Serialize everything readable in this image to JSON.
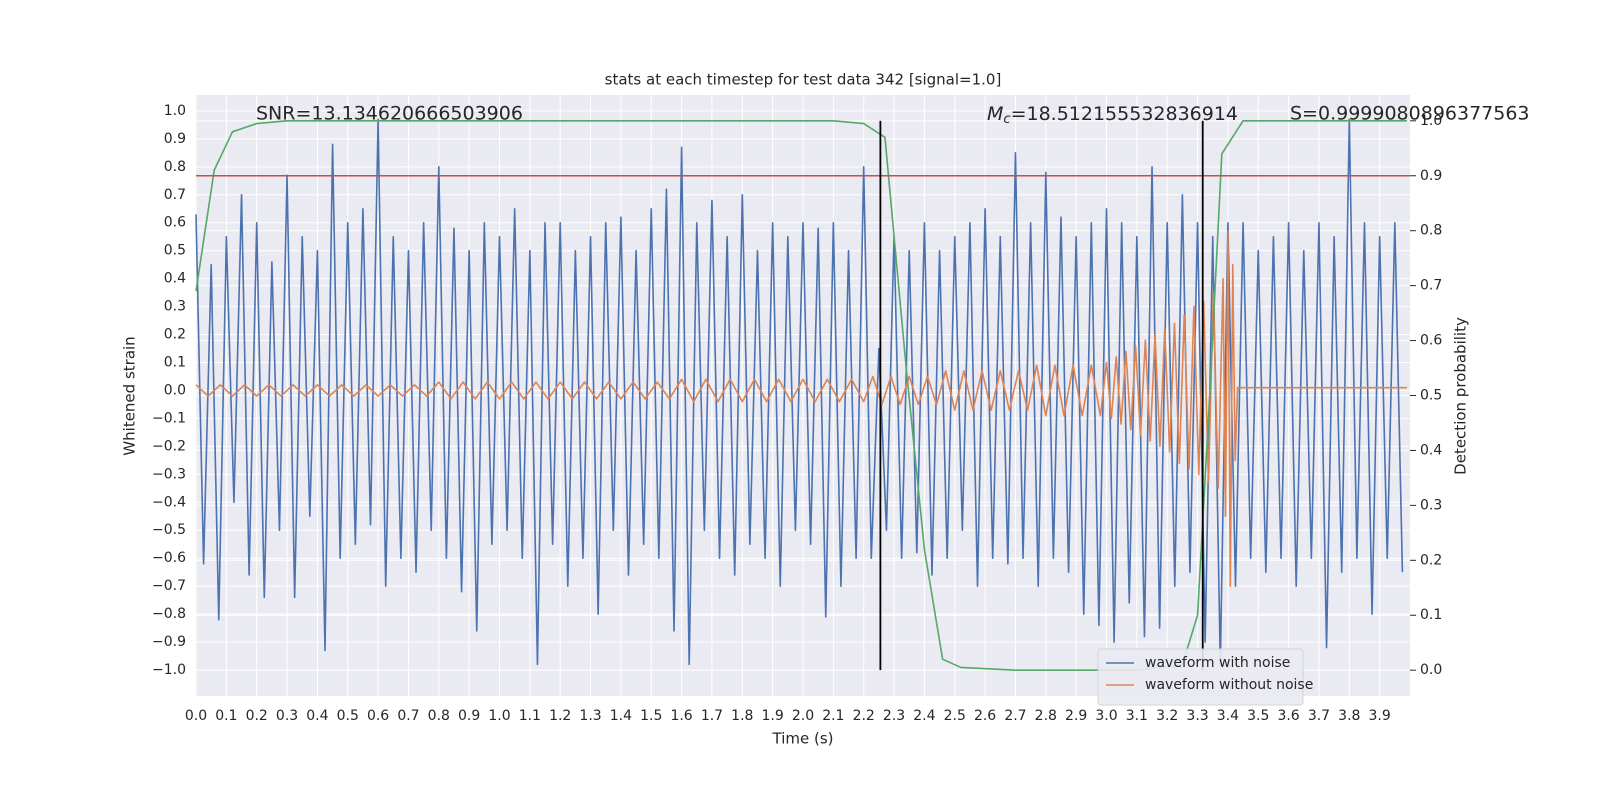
{
  "chart_data": {
    "type": "line",
    "title": "stats at each timestep for test data 342 [signal=1.0]",
    "xlabel": "Time (s)",
    "ylabel": "Whitened strain",
    "y2label": "Detection probability",
    "annotations": {
      "snr": "SNR=13.134620666503906",
      "mc_symbol": "M",
      "mc_subscript": "c",
      "mc_value": "=18.512155532836914",
      "s": "S=0.9999080896377563"
    },
    "xlim": [
      0,
      4.0
    ],
    "ylim": [
      -1.093,
      1.057
    ],
    "y2lim": [
      -0.047,
      1.047
    ],
    "grid": true,
    "legend": "lower right",
    "xticks": [
      {
        "value": 0,
        "label": "0.0"
      },
      {
        "value": 0.1,
        "label": "0.1"
      },
      {
        "value": 0.2,
        "label": "0.2"
      },
      {
        "value": 0.3,
        "label": "0.3"
      },
      {
        "value": 0.4,
        "label": "0.4"
      },
      {
        "value": 0.5,
        "label": "0.5"
      },
      {
        "value": 0.6,
        "label": "0.6"
      },
      {
        "value": 0.7,
        "label": "0.7"
      },
      {
        "value": 0.8,
        "label": "0.8"
      },
      {
        "value": 0.9,
        "label": "0.9"
      },
      {
        "value": 1,
        "label": "1.0"
      },
      {
        "value": 1.1,
        "label": "1.1"
      },
      {
        "value": 1.2,
        "label": "1.2"
      },
      {
        "value": 1.3,
        "label": "1.3"
      },
      {
        "value": 1.4,
        "label": "1.4"
      },
      {
        "value": 1.5,
        "label": "1.5"
      },
      {
        "value": 1.6,
        "label": "1.6"
      },
      {
        "value": 1.7,
        "label": "1.7"
      },
      {
        "value": 1.8,
        "label": "1.8"
      },
      {
        "value": 1.9,
        "label": "1.9"
      },
      {
        "value": 2,
        "label": "2.0"
      },
      {
        "value": 2.1,
        "label": "2.1"
      },
      {
        "value": 2.2,
        "label": "2.2"
      },
      {
        "value": 2.3,
        "label": "2.3"
      },
      {
        "value": 2.4,
        "label": "2.4"
      },
      {
        "value": 2.5,
        "label": "2.5"
      },
      {
        "value": 2.6,
        "label": "2.6"
      },
      {
        "value": 2.7,
        "label": "2.7"
      },
      {
        "value": 2.8,
        "label": "2.8"
      },
      {
        "value": 2.9,
        "label": "2.9"
      },
      {
        "value": 3,
        "label": "3.0"
      },
      {
        "value": 3.1,
        "label": "3.1"
      },
      {
        "value": 3.2,
        "label": "3.2"
      },
      {
        "value": 3.3,
        "label": "3.3"
      },
      {
        "value": 3.4,
        "label": "3.4"
      },
      {
        "value": 3.5,
        "label": "3.5"
      },
      {
        "value": 3.6,
        "label": "3.6"
      },
      {
        "value": 3.7,
        "label": "3.7"
      },
      {
        "value": 3.8,
        "label": "3.8"
      },
      {
        "value": 3.9,
        "label": "3.9"
      }
    ],
    "yticks": [
      {
        "value": -1,
        "label": "−1.0"
      },
      {
        "value": -0.9,
        "label": "−0.9"
      },
      {
        "value": -0.8,
        "label": "−0.8"
      },
      {
        "value": -0.7,
        "label": "−0.7"
      },
      {
        "value": -0.6,
        "label": "−0.6"
      },
      {
        "value": -0.5,
        "label": "−0.5"
      },
      {
        "value": -0.4,
        "label": "−0.4"
      },
      {
        "value": -0.3,
        "label": "−0.3"
      },
      {
        "value": -0.2,
        "label": "−0.2"
      },
      {
        "value": -0.1,
        "label": "−0.1"
      },
      {
        "value": 0,
        "label": "0.0"
      },
      {
        "value": 0.1,
        "label": "0.1"
      },
      {
        "value": 0.2,
        "label": "0.2"
      },
      {
        "value": 0.3,
        "label": "0.3"
      },
      {
        "value": 0.4,
        "label": "0.4"
      },
      {
        "value": 0.5,
        "label": "0.5"
      },
      {
        "value": 0.6,
        "label": "0.6"
      },
      {
        "value": 0.7,
        "label": "0.7"
      },
      {
        "value": 0.8,
        "label": "0.8"
      },
      {
        "value": 0.9,
        "label": "0.9"
      },
      {
        "value": 1,
        "label": "1.0"
      }
    ],
    "y2ticks": [
      {
        "value": 0,
        "label": "0.0"
      },
      {
        "value": 0.1,
        "label": "0.1"
      },
      {
        "value": 0.2,
        "label": "0.2"
      },
      {
        "value": 0.3,
        "label": "0.3"
      },
      {
        "value": 0.4,
        "label": "0.4"
      },
      {
        "value": 0.5,
        "label": "0.5"
      },
      {
        "value": 0.6,
        "label": "0.6"
      },
      {
        "value": 0.7,
        "label": "0.7"
      },
      {
        "value": 0.8,
        "label": "0.8"
      },
      {
        "value": 0.9,
        "label": "0.9"
      },
      {
        "value": 1,
        "label": "1.0"
      }
    ],
    "series": [
      {
        "name": "waveform with noise",
        "color": "#4c72b0",
        "legend": true,
        "x": [
          0,
          0.025,
          0.05,
          0.075,
          0.1,
          0.125,
          0.15,
          0.175,
          0.2,
          0.225,
          0.25,
          0.275,
          0.3,
          0.325,
          0.35,
          0.375,
          0.4,
          0.425,
          0.45,
          0.475,
          0.5,
          0.525,
          0.55,
          0.575,
          0.6,
          0.625,
          0.65,
          0.675,
          0.7,
          0.725,
          0.75,
          0.775,
          0.8,
          0.825,
          0.85,
          0.875,
          0.9,
          0.925,
          0.95,
          0.975,
          1,
          1.025,
          1.05,
          1.075,
          1.1,
          1.125,
          1.15,
          1.175,
          1.2,
          1.225,
          1.25,
          1.275,
          1.3,
          1.325,
          1.35,
          1.375,
          1.4,
          1.425,
          1.45,
          1.475,
          1.5,
          1.525,
          1.55,
          1.575,
          1.6,
          1.625,
          1.65,
          1.675,
          1.7,
          1.725,
          1.75,
          1.775,
          1.8,
          1.825,
          1.85,
          1.875,
          1.9,
          1.925,
          1.95,
          1.975,
          2,
          2.025,
          2.05,
          2.075,
          2.1,
          2.125,
          2.15,
          2.175,
          2.2,
          2.225,
          2.25,
          2.275,
          2.3,
          2.325,
          2.35,
          2.375,
          2.4,
          2.425,
          2.45,
          2.475,
          2.5,
          2.525,
          2.55,
          2.575,
          2.6,
          2.625,
          2.65,
          2.675,
          2.7,
          2.725,
          2.75,
          2.775,
          2.8,
          2.825,
          2.85,
          2.875,
          2.9,
          2.925,
          2.95,
          2.975,
          3,
          3.025,
          3.05,
          3.075,
          3.1,
          3.125,
          3.15,
          3.175,
          3.2,
          3.225,
          3.25,
          3.275,
          3.3,
          3.325,
          3.35,
          3.375,
          3.4,
          3.425,
          3.45,
          3.475,
          3.5,
          3.525,
          3.55,
          3.575,
          3.6,
          3.625,
          3.65,
          3.675,
          3.7,
          3.725,
          3.75,
          3.775,
          3.8,
          3.825,
          3.85,
          3.875,
          3.9,
          3.925,
          3.95,
          3.975
        ],
        "values": [
          0.63,
          -0.62,
          0.45,
          -0.82,
          0.55,
          -0.4,
          0.7,
          -0.66,
          0.6,
          -0.74,
          0.46,
          -0.5,
          0.77,
          -0.74,
          0.55,
          -0.45,
          0.5,
          -0.93,
          0.88,
          -0.6,
          0.6,
          -0.55,
          0.65,
          -0.48,
          0.97,
          -0.7,
          0.55,
          -0.6,
          0.5,
          -0.65,
          0.6,
          -0.5,
          0.8,
          -0.6,
          0.58,
          -0.72,
          0.5,
          -0.86,
          0.6,
          -0.55,
          0.55,
          -0.5,
          0.65,
          -0.6,
          0.5,
          -0.98,
          0.6,
          -0.55,
          0.6,
          -0.7,
          0.5,
          -0.6,
          0.55,
          -0.8,
          0.6,
          -0.5,
          0.62,
          -0.66,
          0.5,
          -0.55,
          0.65,
          -0.6,
          0.72,
          -0.86,
          0.87,
          -0.98,
          0.6,
          -0.5,
          0.68,
          -0.6,
          0.55,
          -0.66,
          0.7,
          -0.55,
          0.5,
          -0.6,
          0.6,
          -0.7,
          0.55,
          -0.5,
          0.6,
          -0.55,
          0.58,
          -0.81,
          0.6,
          -0.7,
          0.5,
          -0.6,
          0.8,
          -0.6,
          0.15,
          -0.5,
          0.55,
          -0.6,
          0.5,
          -0.58,
          0.6,
          -0.66,
          0.5,
          -0.6,
          0.55,
          -0.5,
          0.6,
          -0.7,
          0.65,
          -0.6,
          0.55,
          -0.62,
          0.85,
          -0.6,
          0.6,
          -0.7,
          0.78,
          -0.6,
          0.62,
          -0.65,
          0.55,
          -0.8,
          0.6,
          -0.84,
          0.65,
          -0.9,
          0.6,
          -0.76,
          0.55,
          -0.88,
          0.8,
          -0.85,
          0.6,
          -0.7,
          0.7,
          -0.65,
          0.6,
          -0.9,
          0.55,
          -0.98,
          0.6,
          -0.7,
          0.6,
          -0.6,
          0.5,
          -0.65,
          0.55,
          -0.6,
          0.6,
          -0.7,
          0.5,
          -0.6,
          0.6,
          -0.92,
          0.55,
          -0.65,
          0.97,
          -0.6,
          0.6,
          -0.8,
          0.55,
          -0.6,
          0.6,
          -0.65
        ]
      },
      {
        "name": "waveform without noise",
        "color": "#dd8452",
        "legend": true,
        "x": [
          0,
          0.04,
          0.08,
          0.12,
          0.16,
          0.2,
          0.24,
          0.28,
          0.32,
          0.36,
          0.4,
          0.44,
          0.48,
          0.52,
          0.56,
          0.6,
          0.64,
          0.68,
          0.72,
          0.76,
          0.8,
          0.84,
          0.88,
          0.92,
          0.96,
          1,
          1.04,
          1.08,
          1.12,
          1.16,
          1.2,
          1.24,
          1.28,
          1.32,
          1.36,
          1.4,
          1.44,
          1.48,
          1.52,
          1.56,
          1.6,
          1.64,
          1.68,
          1.72,
          1.76,
          1.8,
          1.84,
          1.88,
          1.92,
          1.96,
          2,
          2.04,
          2.08,
          2.12,
          2.16,
          2.2,
          2.23,
          2.26,
          2.29,
          2.32,
          2.35,
          2.38,
          2.41,
          2.44,
          2.47,
          2.5,
          2.53,
          2.56,
          2.59,
          2.62,
          2.65,
          2.68,
          2.71,
          2.74,
          2.77,
          2.8,
          2.83,
          2.86,
          2.89,
          2.92,
          2.95,
          2.98,
          3,
          3.016,
          3.032,
          3.048,
          3.064,
          3.08,
          3.096,
          3.112,
          3.128,
          3.144,
          3.16,
          3.176,
          3.192,
          3.208,
          3.224,
          3.24,
          3.256,
          3.272,
          3.288,
          3.304,
          3.32,
          3.336,
          3.352,
          3.368,
          3.384,
          3.392,
          3.4,
          3.408,
          3.416,
          3.424,
          3.432,
          3.99
        ],
        "values": [
          0.02,
          -0.02,
          0.02,
          -0.02,
          0.02,
          -0.02,
          0.02,
          -0.02,
          0.02,
          -0.02,
          0.02,
          -0.02,
          0.02,
          -0.02,
          0.02,
          -0.02,
          0.02,
          -0.02,
          0.02,
          -0.02,
          0.03,
          -0.03,
          0.03,
          -0.03,
          0.03,
          -0.03,
          0.03,
          -0.03,
          0.03,
          -0.03,
          0.03,
          -0.03,
          0.03,
          -0.03,
          0.03,
          -0.03,
          0.03,
          -0.03,
          0.03,
          -0.03,
          0.04,
          -0.04,
          0.04,
          -0.04,
          0.04,
          -0.04,
          0.04,
          -0.04,
          0.04,
          -0.04,
          0.04,
          -0.04,
          0.04,
          -0.04,
          0.04,
          -0.04,
          0.05,
          -0.05,
          0.05,
          -0.05,
          0.05,
          -0.05,
          0.05,
          -0.05,
          0.07,
          -0.07,
          0.07,
          -0.07,
          0.07,
          -0.07,
          0.07,
          -0.07,
          0.07,
          -0.07,
          0.09,
          -0.09,
          0.09,
          -0.09,
          0.09,
          -0.09,
          0.09,
          -0.09,
          0.1,
          -0.1,
          0.12,
          -0.12,
          0.14,
          -0.14,
          0.16,
          -0.16,
          0.18,
          -0.18,
          0.2,
          -0.2,
          0.22,
          -0.22,
          0.24,
          -0.26,
          0.27,
          -0.28,
          0.3,
          -0.3,
          0.32,
          -0.33,
          0.35,
          -0.35,
          0.4,
          -0.45,
          0.57,
          -0.7,
          0.45,
          -0.25,
          0.01,
          0.01
        ]
      },
      {
        "name": "detection probability",
        "color": "#55a868",
        "axis": "y2",
        "legend": false,
        "x": [
          0,
          0.06,
          0.12,
          0.2,
          0.3,
          1.0,
          2.1,
          2.2,
          2.27,
          2.34,
          2.4,
          2.46,
          2.52,
          2.7,
          3.1,
          3.25,
          3.3,
          3.34,
          3.38,
          3.45,
          3.99
        ],
        "values": [
          0.69,
          0.91,
          0.98,
          0.995,
          1.0,
          1.0,
          1.0,
          0.995,
          0.97,
          0.55,
          0.22,
          0.02,
          0.005,
          0.0,
          0.0,
          0.01,
          0.1,
          0.5,
          0.94,
          1.0,
          1.0
        ]
      }
    ],
    "hline": {
      "value": 0.9,
      "axis": "y2",
      "color": "#c44e52"
    },
    "vlines": {
      "x": [
        2.255,
        3.317
      ],
      "color": "#000000"
    }
  }
}
